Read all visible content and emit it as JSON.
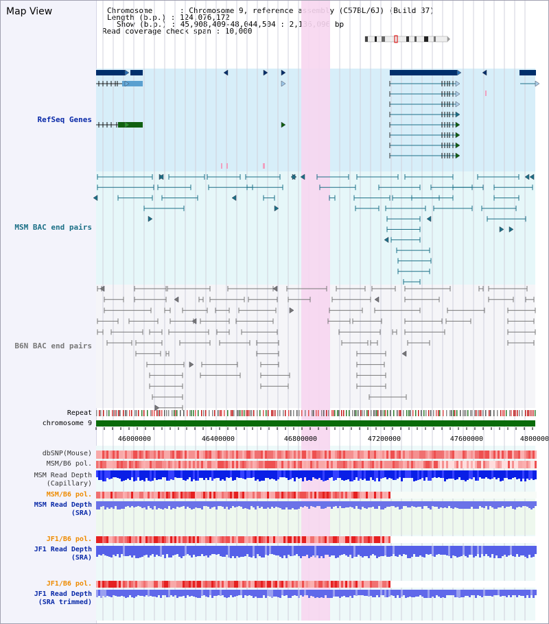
{
  "header": {
    "title": "Map View",
    "chromosome_line": "Chromosome      : Chromosome 9, reference assembly (C57BL/6J) (Build 37)",
    "length_line": "Length (b.p.) : 124,076,172",
    "show_line": "Show (b.p.) : 45,908,409-48,044,504 : 2,136,096 bp",
    "span_line": "Read coverage check span : 10,000"
  },
  "tracks": {
    "refseq": "RefSeq Genes",
    "msm_bac": "MSM BAC end pairs",
    "b6n_bac": "B6N BAC end pairs",
    "repeat": "Repeat",
    "chromosome": "chromosome 9",
    "dbsnp": "dbSNP(Mouse)",
    "msm_pol": "MSM/B6 pol.",
    "msm_depth_cap_1": "MSM Read Depth",
    "msm_depth_cap_2": "(Capillary)",
    "msm_pol2": "MSM/B6 pol.",
    "msm_depth_sra_1": "MSM Read Depth",
    "msm_depth_sra_2": "(SRA)",
    "jf1_pol": "JF1/B6 pol.",
    "jf1_depth_1": "JF1 Read Depth",
    "jf1_depth_2": "(SRA)",
    "jf1_pol2": "JF1/B6 pol.",
    "jf1_trim_1": "JF1 Read Depth",
    "jf1_trim_2": "(SRA trimmed)"
  },
  "axis": {
    "ticks": [
      "46000000",
      "46400000",
      "46800000",
      "47200000",
      "47600000",
      "48000000"
    ]
  },
  "colors": {
    "refseq_bg": "#d7eef9",
    "msm_bac_bg": "#e6f7f9",
    "b6n_bac_bg": "#f5f5f8",
    "highlight": "#f7d6ef",
    "gene_dark": "#002f6b",
    "gene_green": "#106010",
    "msm_bac_line": "#1b6f86",
    "b6n_bac_line": "#777777",
    "chromosome_bar": "#0a6b0a",
    "depth_blue": "#0a1fe6",
    "depth_light_blue": "#6b72e8",
    "pol_red": "#ee3030",
    "label_blue": "#0a2aa8",
    "label_orange": "#ee8b00",
    "label_teal": "#1b6f86"
  }
}
